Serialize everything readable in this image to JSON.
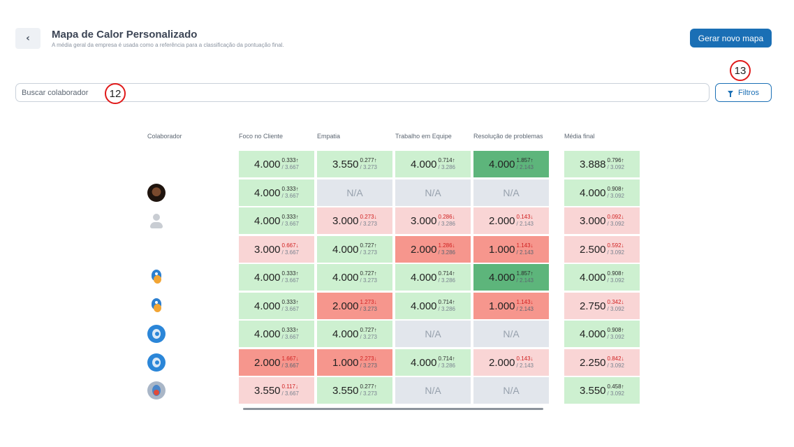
{
  "header": {
    "back_icon": "chevron-left-icon",
    "title": "Mapa de Calor Personalizado",
    "subtitle": "A média geral da empresa é usada como a referência para a classificação da pontuação final.",
    "new_map_label": "Gerar novo mapa"
  },
  "search": {
    "placeholder": "Buscar colaborador",
    "value": ""
  },
  "filters": {
    "label": "Filtros",
    "icon": "filter-icon"
  },
  "annotations": {
    "badge_search": "12",
    "badge_filters": "13"
  },
  "table": {
    "headers": [
      "Colaborador",
      "Foco no Cliente",
      "Empatia",
      "Trabalho em Equipe",
      "Resolução de problemas",
      "Média final"
    ],
    "column_averages": [
      "/ 3.667",
      "/ 3.273",
      "/ 3.286",
      "/ 2.143",
      "/ 3.092"
    ],
    "colors": {
      "light_green": "#cdf0d0",
      "dark_green": "#5db57b",
      "light_red": "#f9d5d5",
      "dark_red": "#f6968d",
      "na": "#e2e6ec"
    },
    "rows": [
      {
        "avatar": "none",
        "cells": [
          {
            "value": "4.000",
            "diff": "0.333",
            "dir": "up",
            "tone": "light_green"
          },
          {
            "value": "3.550",
            "diff": "0.277",
            "dir": "up",
            "tone": "light_green"
          },
          {
            "value": "4.000",
            "diff": "0.714",
            "dir": "up",
            "tone": "light_green"
          },
          {
            "value": "4.000",
            "diff": "1.857",
            "dir": "up",
            "tone": "dark_green"
          },
          {
            "value": "3.888",
            "diff": "0.796",
            "dir": "up",
            "tone": "light_green"
          }
        ]
      },
      {
        "avatar": "photo-person",
        "cells": [
          {
            "value": "4.000",
            "diff": "0.333",
            "dir": "up",
            "tone": "light_green"
          },
          {
            "value": "N/A",
            "tone": "na"
          },
          {
            "value": "N/A",
            "tone": "na"
          },
          {
            "value": "N/A",
            "tone": "na"
          },
          {
            "value": "4.000",
            "diff": "0.908",
            "dir": "up",
            "tone": "light_green"
          }
        ]
      },
      {
        "avatar": "default-user",
        "cells": [
          {
            "value": "4.000",
            "diff": "0.333",
            "dir": "up",
            "tone": "light_green"
          },
          {
            "value": "3.000",
            "diff": "0.273",
            "dir": "down",
            "tone": "light_red"
          },
          {
            "value": "3.000",
            "diff": "0.286",
            "dir": "down",
            "tone": "light_red"
          },
          {
            "value": "2.000",
            "diff": "0.143",
            "dir": "down",
            "tone": "light_red"
          },
          {
            "value": "3.000",
            "diff": "0.092",
            "dir": "down",
            "tone": "light_red"
          }
        ]
      },
      {
        "avatar": "none",
        "cells": [
          {
            "value": "3.000",
            "diff": "0.667",
            "dir": "down",
            "tone": "light_red"
          },
          {
            "value": "4.000",
            "diff": "0.727",
            "dir": "up",
            "tone": "light_green"
          },
          {
            "value": "2.000",
            "diff": "1.286",
            "dir": "down",
            "tone": "dark_red"
          },
          {
            "value": "1.000",
            "diff": "1.143",
            "dir": "down",
            "tone": "dark_red"
          },
          {
            "value": "2.500",
            "diff": "0.592",
            "dir": "down",
            "tone": "light_red"
          }
        ]
      },
      {
        "avatar": "bird",
        "cells": [
          {
            "value": "4.000",
            "diff": "0.333",
            "dir": "up",
            "tone": "light_green"
          },
          {
            "value": "4.000",
            "diff": "0.727",
            "dir": "up",
            "tone": "light_green"
          },
          {
            "value": "4.000",
            "diff": "0.714",
            "dir": "up",
            "tone": "light_green"
          },
          {
            "value": "4.000",
            "diff": "1.857",
            "dir": "up",
            "tone": "dark_green"
          },
          {
            "value": "4.000",
            "diff": "0.908",
            "dir": "up",
            "tone": "light_green"
          }
        ]
      },
      {
        "avatar": "bird",
        "cells": [
          {
            "value": "4.000",
            "diff": "0.333",
            "dir": "up",
            "tone": "light_green"
          },
          {
            "value": "2.000",
            "diff": "1.273",
            "dir": "down",
            "tone": "dark_red"
          },
          {
            "value": "4.000",
            "diff": "0.714",
            "dir": "up",
            "tone": "light_green"
          },
          {
            "value": "1.000",
            "diff": "1.143",
            "dir": "down",
            "tone": "dark_red"
          },
          {
            "value": "2.750",
            "diff": "0.342",
            "dir": "down",
            "tone": "light_red"
          }
        ]
      },
      {
        "avatar": "circle-logo",
        "cells": [
          {
            "value": "4.000",
            "diff": "0.333",
            "dir": "up",
            "tone": "light_green"
          },
          {
            "value": "4.000",
            "diff": "0.727",
            "dir": "up",
            "tone": "light_green"
          },
          {
            "value": "N/A",
            "tone": "na"
          },
          {
            "value": "N/A",
            "tone": "na"
          },
          {
            "value": "4.000",
            "diff": "0.908",
            "dir": "up",
            "tone": "light_green"
          }
        ]
      },
      {
        "avatar": "circle-logo",
        "cells": [
          {
            "value": "2.000",
            "diff": "1.667",
            "dir": "down",
            "tone": "dark_red"
          },
          {
            "value": "1.000",
            "diff": "2.273",
            "dir": "down",
            "tone": "dark_red"
          },
          {
            "value": "4.000",
            "diff": "0.714",
            "dir": "up",
            "tone": "light_green"
          },
          {
            "value": "2.000",
            "diff": "0.143",
            "dir": "down",
            "tone": "light_red"
          },
          {
            "value": "2.250",
            "diff": "0.842",
            "dir": "down",
            "tone": "light_red"
          }
        ]
      },
      {
        "avatar": "gray-logo",
        "cells": [
          {
            "value": "3.550",
            "diff": "0.117",
            "dir": "down",
            "tone": "light_red"
          },
          {
            "value": "3.550",
            "diff": "0.277",
            "dir": "up",
            "tone": "light_green"
          },
          {
            "value": "N/A",
            "tone": "na"
          },
          {
            "value": "N/A",
            "tone": "na"
          },
          {
            "value": "3.550",
            "diff": "0.458",
            "dir": "up",
            "tone": "light_green"
          }
        ]
      }
    ]
  }
}
